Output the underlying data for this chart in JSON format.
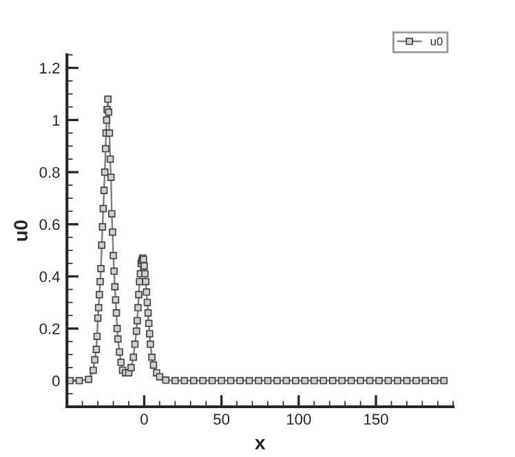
{
  "chart_data": {
    "type": "line",
    "xlabel": "x",
    "ylabel": "u0",
    "xlim": [
      -50,
      200
    ],
    "ylim": [
      -0.1,
      1.25
    ],
    "xticks": [
      0,
      50,
      100,
      150
    ],
    "yticks": [
      0,
      0.2,
      0.4,
      0.6,
      0.8,
      1,
      1.2
    ],
    "legend": "top right",
    "grid": false,
    "marker": "square",
    "line_style": "solid",
    "series": [
      {
        "name": "u0",
        "color": "#808080",
        "x": [
          -48,
          -42,
          -36,
          -33,
          -32,
          -31,
          -30.5,
          -30,
          -29.5,
          -29,
          -28.5,
          -28,
          -27.5,
          -27,
          -26.5,
          -26,
          -25.5,
          -25,
          -24.7,
          -24.3,
          -24,
          -23.5,
          -23,
          -22.5,
          -22,
          -21.5,
          -21,
          -20.5,
          -20,
          -19.5,
          -19,
          -18.5,
          -18,
          -17.5,
          -17,
          -16,
          -15,
          -14,
          -12,
          -10,
          -8.5,
          -7,
          -6,
          -5,
          -4.5,
          -4,
          -3.5,
          -3,
          -2.5,
          -2,
          -1.5,
          -1,
          -0.5,
          0,
          0.5,
          1,
          1.5,
          2,
          2.5,
          3,
          3.5,
          4,
          5,
          6,
          8,
          10,
          14,
          20,
          26,
          32,
          38,
          44,
          50,
          56,
          62,
          68,
          74,
          80,
          86,
          92,
          98,
          104,
          110,
          116,
          122,
          128,
          134,
          140,
          146,
          152,
          158,
          164,
          170,
          176,
          182,
          188,
          194
        ],
        "values": [
          0,
          0,
          0.005,
          0.04,
          0.08,
          0.12,
          0.17,
          0.24,
          0.28,
          0.33,
          0.38,
          0.43,
          0.52,
          0.59,
          0.66,
          0.73,
          0.8,
          0.89,
          0.95,
          1.0,
          1.04,
          1.08,
          1.03,
          0.95,
          0.85,
          0.78,
          0.64,
          0.57,
          0.48,
          0.42,
          0.36,
          0.31,
          0.26,
          0.2,
          0.16,
          0.11,
          0.07,
          0.04,
          0.03,
          0.03,
          0.05,
          0.09,
          0.14,
          0.19,
          0.23,
          0.28,
          0.33,
          0.38,
          0.41,
          0.45,
          0.46,
          0.47,
          0.465,
          0.44,
          0.41,
          0.38,
          0.34,
          0.3,
          0.26,
          0.22,
          0.18,
          0.14,
          0.09,
          0.06,
          0.03,
          0.015,
          0.002,
          0,
          0,
          0,
          0,
          0,
          0,
          0,
          0,
          0,
          0,
          0,
          0,
          0,
          0,
          0,
          0,
          0,
          0,
          0,
          0,
          0,
          0,
          0,
          0,
          0,
          0,
          0,
          0,
          0,
          0
        ]
      }
    ]
  }
}
